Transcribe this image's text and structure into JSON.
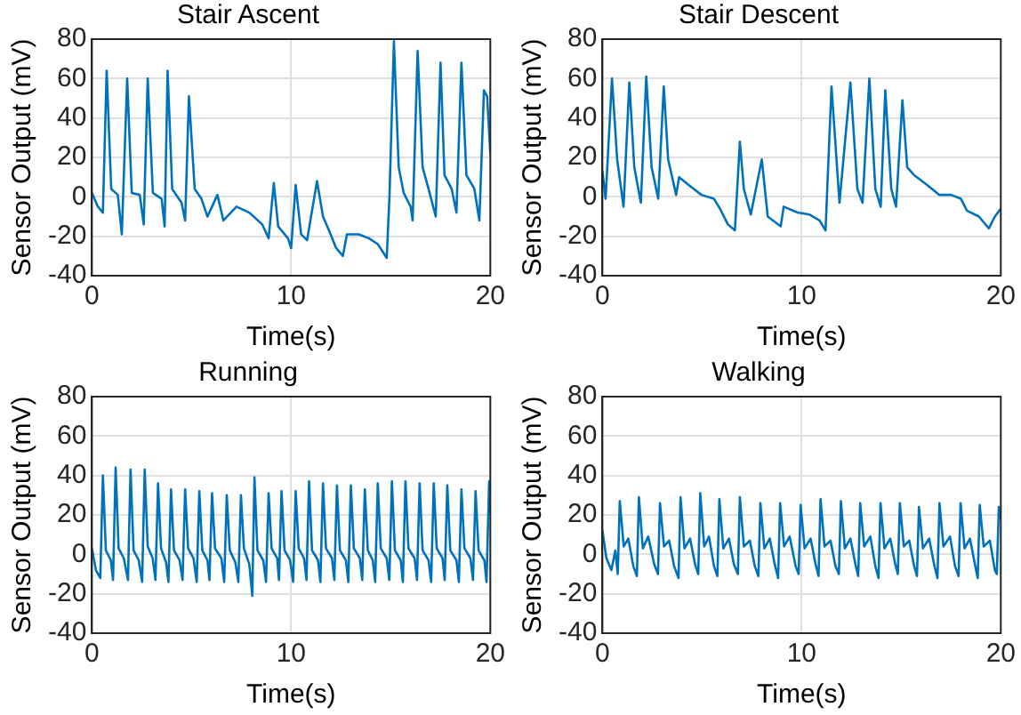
{
  "chart_data": [
    {
      "type": "line",
      "title": "Stair Ascent",
      "xlabel": "Time(s)",
      "ylabel": "Sensor Output (mV)",
      "xlim": [
        0,
        20
      ],
      "xticks": [
        0,
        10,
        20
      ],
      "ylim": [
        -40,
        80
      ],
      "yticks": [
        -40,
        -20,
        0,
        20,
        40,
        60,
        80
      ],
      "grid": true,
      "series": [
        {
          "color": "#0072bd",
          "x": [
            0,
            0.3,
            0.55,
            0.74,
            0.97,
            1.3,
            1.5,
            1.77,
            2.0,
            2.4,
            2.6,
            2.8,
            3.06,
            3.5,
            3.65,
            3.8,
            4.03,
            4.5,
            4.68,
            4.87,
            5.16,
            5.5,
            5.8,
            6.3,
            6.6,
            7.26,
            7.9,
            8.55,
            8.87,
            9.13,
            9.35,
            9.84,
            10,
            10.23,
            10.5,
            10.8,
            11.3,
            11.6,
            11.9,
            12.26,
            12.6,
            12.8,
            13.4,
            13.9,
            14.35,
            14.8,
            14.94,
            15.16,
            15.4,
            15.65,
            16,
            16.1,
            16.35,
            16.6,
            16.9,
            17.26,
            17.5,
            17.7,
            18.06,
            18.3,
            18.55,
            18.8,
            19.2,
            19.45,
            19.68,
            19.84,
            20
          ],
          "values": [
            2,
            -5,
            -8,
            64,
            4,
            1,
            -19,
            60,
            2,
            1,
            -14,
            60,
            2,
            -1,
            -15,
            64,
            4,
            -3,
            -12,
            51,
            4,
            -1,
            -10,
            1,
            -12,
            -5,
            -8,
            -14,
            -21,
            7,
            -15,
            -21,
            -26,
            6,
            -19,
            -22,
            8,
            -10,
            -17,
            -26,
            -30,
            -19,
            -19,
            -21,
            -24,
            -31,
            1,
            79,
            15,
            2,
            -5,
            -12,
            74,
            15,
            4,
            -10,
            68,
            11,
            4,
            -8,
            68,
            11,
            4,
            -12,
            54,
            51,
            22
          ]
        }
      ]
    },
    {
      "type": "line",
      "title": "Stair Descent",
      "xlabel": "Time(s)",
      "ylabel": "Sensor Output (mV)",
      "xlim": [
        0,
        20
      ],
      "xticks": [
        0,
        10,
        20
      ],
      "ylim": [
        -40,
        80
      ],
      "yticks": [
        -40,
        -20,
        0,
        20,
        40,
        60,
        80
      ],
      "grid": true,
      "series": [
        {
          "color": "#0072bd",
          "x": [
            0,
            0.16,
            0.48,
            0.74,
            1.06,
            1.35,
            1.6,
            1.93,
            2.2,
            2.47,
            2.8,
            3.08,
            3.3,
            3.7,
            3.85,
            4.33,
            4.97,
            5.6,
            5.9,
            6.3,
            6.65,
            6.9,
            7.1,
            7.45,
            8.0,
            8.3,
            8.95,
            9.1,
            9.8,
            10.4,
            10.9,
            11.2,
            11.5,
            11.9,
            12.45,
            12.8,
            13.06,
            13.4,
            13.7,
            13.97,
            14.2,
            14.5,
            14.74,
            15.06,
            15.3,
            15.65,
            16.3,
            16.9,
            17.5,
            18.0,
            18.3,
            18.9,
            19.4,
            19.7,
            20
          ],
          "values": [
            13,
            -1,
            60,
            19,
            -5,
            58,
            15,
            -3,
            61,
            15,
            -1,
            56,
            19,
            1,
            10,
            6,
            1,
            -1,
            -6,
            -14,
            -17,
            28,
            4,
            -9,
            19,
            -10,
            -15,
            -5,
            -8,
            -9,
            -12,
            -17,
            56,
            -3,
            58,
            4,
            -3,
            60,
            4,
            -5,
            54,
            4,
            -5,
            49,
            15,
            11,
            6,
            1,
            1,
            -1,
            -7,
            -10,
            -16,
            -10,
            -6
          ]
        }
      ]
    },
    {
      "type": "line",
      "title": "Running",
      "xlabel": "Time(s)",
      "ylabel": "Sensor Output (mV)",
      "xlim": [
        0,
        20
      ],
      "xticks": [
        0,
        10,
        20
      ],
      "ylim": [
        -40,
        80
      ],
      "yticks": [
        -40,
        -20,
        0,
        20,
        40,
        60,
        80
      ],
      "grid": true,
      "series": [
        {
          "color": "#0072bd",
          "x": [
            0,
            0.2,
            0.42,
            0.55,
            0.7,
            0.95,
            1.06,
            1.19,
            1.34,
            1.6,
            1.81,
            1.94,
            2.09,
            2.35,
            2.52,
            2.65,
            2.8,
            3.05,
            3.19,
            3.32,
            3.47,
            3.72,
            3.84,
            3.97,
            4.12,
            4.4,
            4.55,
            4.68,
            4.83,
            5.1,
            5.26,
            5.39,
            5.54,
            5.8,
            5.9,
            6.03,
            6.18,
            6.5,
            6.64,
            6.77,
            6.92,
            7.2,
            7.35,
            7.48,
            7.63,
            7.9,
            8.05,
            8.16,
            8.31,
            8.6,
            8.74,
            8.87,
            9.02,
            9.3,
            9.39,
            9.52,
            9.67,
            9.95,
            10.1,
            10.23,
            10.38,
            10.65,
            10.77,
            10.9,
            11.05,
            11.35,
            11.47,
            11.6,
            11.75,
            12.05,
            12.17,
            12.3,
            12.45,
            12.75,
            12.87,
            13.0,
            13.15,
            13.45,
            13.57,
            13.7,
            13.85,
            14.1,
            14.22,
            14.35,
            14.5,
            14.8,
            14.93,
            15.06,
            15.21,
            15.5,
            15.61,
            15.74,
            15.89,
            16.2,
            16.32,
            16.45,
            16.6,
            16.9,
            17.03,
            17.16,
            17.31,
            17.6,
            17.71,
            17.84,
            17.99,
            18.3,
            18.42,
            18.55,
            18.7,
            19.0,
            19.13,
            19.26,
            19.41,
            19.7,
            19.81,
            19.94,
            20
          ],
          "values": [
            3,
            -8,
            -12,
            40,
            2,
            -3,
            -13,
            44,
            3,
            -2,
            -13,
            43,
            2,
            -3,
            -14,
            43,
            4,
            -2,
            -13,
            36,
            3,
            -4,
            -14,
            33,
            2,
            -3,
            -13,
            33,
            3,
            -2,
            -14,
            32,
            2,
            -3,
            -13,
            31,
            3,
            -2,
            -14,
            30,
            2,
            -4,
            -14,
            30,
            3,
            -5,
            -21,
            39,
            2,
            -3,
            -14,
            31,
            3,
            -2,
            -13,
            32,
            2,
            -3,
            -14,
            32,
            3,
            -2,
            -13,
            37,
            2,
            -3,
            -14,
            36,
            3,
            -2,
            -13,
            35,
            2,
            -3,
            -14,
            35,
            3,
            -2,
            -13,
            33,
            2,
            -3,
            -14,
            36,
            3,
            -2,
            -13,
            37,
            2,
            -3,
            -14,
            37,
            3,
            -2,
            -13,
            36,
            2,
            -3,
            -14,
            36,
            3,
            -2,
            -13,
            35,
            2,
            -3,
            -14,
            33,
            3,
            -2,
            -13,
            32,
            2,
            -3,
            -14,
            37,
            20
          ]
        }
      ]
    },
    {
      "type": "line",
      "title": "Walking",
      "xlabel": "Time(s)",
      "ylabel": "Sensor Output (mV)",
      "xlim": [
        0,
        20
      ],
      "xticks": [
        0,
        10,
        20
      ],
      "ylim": [
        -40,
        80
      ],
      "yticks": [
        -40,
        -20,
        0,
        20,
        40,
        60,
        80
      ],
      "grid": true,
      "series": [
        {
          "color": "#0072bd",
          "x": [
            0,
            0.2,
            0.45,
            0.65,
            0.77,
            0.87,
            1.07,
            1.3,
            1.55,
            1.73,
            1.83,
            2.03,
            2.3,
            2.6,
            2.79,
            2.89,
            3.09,
            3.35,
            3.6,
            3.82,
            3.92,
            4.12,
            4.4,
            4.65,
            4.81,
            4.91,
            5.11,
            5.35,
            5.6,
            5.77,
            5.87,
            6.07,
            6.35,
            6.6,
            6.8,
            6.9,
            7.1,
            7.4,
            7.65,
            7.83,
            7.93,
            8.13,
            8.4,
            8.65,
            8.82,
            8.92,
            9.12,
            9.4,
            9.7,
            9.85,
            9.95,
            10.15,
            10.45,
            10.7,
            10.85,
            10.95,
            11.15,
            11.45,
            11.7,
            11.87,
            11.97,
            12.17,
            12.45,
            12.7,
            12.84,
            12.94,
            13.14,
            13.45,
            13.7,
            13.86,
            13.96,
            14.16,
            14.45,
            14.7,
            14.83,
            14.93,
            15.13,
            15.4,
            15.65,
            15.79,
            15.89,
            16.09,
            16.4,
            16.65,
            16.82,
            16.92,
            17.12,
            17.45,
            17.7,
            17.88,
            17.98,
            18.18,
            18.45,
            18.7,
            18.84,
            18.94,
            19.14,
            19.45,
            19.7,
            19.8,
            19.9,
            20
          ],
          "values": [
            12,
            -2,
            -8,
            2,
            -10,
            27,
            4,
            8,
            -6,
            -11,
            29,
            3,
            9,
            -5,
            -10,
            26,
            4,
            7,
            -6,
            -12,
            29,
            3,
            8,
            -5,
            -10,
            31,
            4,
            9,
            -6,
            -11,
            28,
            3,
            8,
            -5,
            -10,
            29,
            4,
            7,
            -6,
            -11,
            26,
            3,
            8,
            -5,
            -12,
            26,
            4,
            9,
            -6,
            -10,
            25,
            3,
            8,
            -5,
            -11,
            28,
            4,
            7,
            -6,
            -10,
            27,
            3,
            8,
            -5,
            -11,
            26,
            4,
            9,
            -6,
            -12,
            26,
            3,
            8,
            -5,
            -10,
            26,
            4,
            7,
            -6,
            -11,
            24,
            3,
            8,
            -5,
            -12,
            26,
            4,
            9,
            -6,
            -11,
            26,
            3,
            8,
            -5,
            -12,
            25,
            4,
            7,
            -8,
            -10,
            24,
            18
          ]
        }
      ]
    }
  ]
}
